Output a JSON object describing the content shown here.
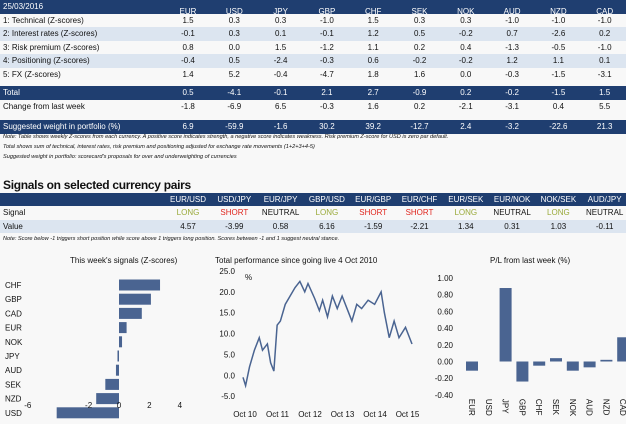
{
  "scorecard": {
    "date": "25/03/2016",
    "currencies": [
      "EUR",
      "USD",
      "JPY",
      "GBP",
      "CHF",
      "SEK",
      "NOK",
      "AUD",
      "NZD",
      "CAD"
    ],
    "rows": [
      {
        "label": "1: Technical (Z-scores)",
        "values": [
          "1.5",
          "0.3",
          "0.3",
          "-1.0",
          "1.5",
          "0.3",
          "0.3",
          "-1.0",
          "-1.0",
          "-1.0"
        ]
      },
      {
        "label": "2: Interest rates (Z-scores)",
        "values": [
          "-0.1",
          "0.3",
          "0.1",
          "-0.1",
          "1.2",
          "0.5",
          "-0.2",
          "0.7",
          "-2.6",
          "0.2"
        ]
      },
      {
        "label": "3: Risk premium (Z-scores)",
        "values": [
          "0.8",
          "0.0",
          "1.5",
          "-1.2",
          "1.1",
          "0.2",
          "0.4",
          "-1.3",
          "-0.5",
          "-1.0"
        ]
      },
      {
        "label": "4: Positioning (Z-scores)",
        "values": [
          "-0.4",
          "0.5",
          "-2.4",
          "-0.3",
          "0.6",
          "-0.2",
          "-0.2",
          "1.2",
          "1.1",
          "0.1"
        ]
      },
      {
        "label": "5: FX (Z-scores)",
        "values": [
          "1.4",
          "5.2",
          "-0.4",
          "-4.7",
          "1.8",
          "1.6",
          "0.0",
          "-0.3",
          "-1.5",
          "-3.1"
        ]
      }
    ],
    "total": {
      "label": "Total",
      "values": [
        "0.5",
        "-4.1",
        "-0.1",
        "2.1",
        "2.7",
        "-0.9",
        "0.2",
        "-0.2",
        "-1.5",
        "1.5"
      ]
    },
    "change": {
      "label": "Change from last week",
      "values": [
        "-1.8",
        "-6.9",
        "6.5",
        "-0.3",
        "1.6",
        "0.2",
        "-2.1",
        "-3.1",
        "0.4",
        "5.5"
      ]
    },
    "weight": {
      "label": "Suggested weight in portfolio (%)",
      "values": [
        "6.9",
        "-59.9",
        "-1.6",
        "30.2",
        "39.2",
        "-12.7",
        "2.4",
        "-3.2",
        "-22.6",
        "21.3"
      ]
    },
    "notes": [
      "Note: Table shows weekly Z-scores from each currency. A positive score indicates strength, a negative score indicates weakness. Risk premium Z-score for USD is zero par default.",
      "Total shows sum of technical, interest rates, risk premium and positioning adjusted for exchange rate movements (1+2+3+4-5)",
      "Suggested weight in portfolio: scorecard's proposals for over and underweighting of currencies"
    ]
  },
  "signals": {
    "title": "Signals on selected currency pairs",
    "pairs": [
      "EUR/USD",
      "USD/JPY",
      "EUR/JPY",
      "GBP/USD",
      "EUR/GBP",
      "EUR/CHF",
      "EUR/SEK",
      "EUR/NOK",
      "NOK/SEK",
      "AUD/JPY"
    ],
    "signal_label": "Signal",
    "signals": [
      "LONG",
      "SHORT",
      "NEUTRAL",
      "LONG",
      "SHORT",
      "SHORT",
      "LONG",
      "NEUTRAL",
      "LONG",
      "NEUTRAL"
    ],
    "value_label": "Value",
    "values": [
      "4.57",
      "-3.99",
      "0.58",
      "6.16",
      "-1.59",
      "-2.21",
      "1.34",
      "0.31",
      "1.03",
      "-0.11"
    ],
    "note": "Note: Score below -1 triggers short position while score above 1 triggers long position. Scores between -1 and 1 suggest neutral stance.",
    "colors": {
      "LONG": "#9aaa3a",
      "SHORT": "#e0261e",
      "NEUTRAL": "#111111"
    }
  },
  "chart_data": [
    {
      "type": "bar",
      "orientation": "horizontal",
      "title": "This week's signals (Z-scores)",
      "categories": [
        "CHF",
        "GBP",
        "CAD",
        "EUR",
        "NOK",
        "JPY",
        "AUD",
        "SEK",
        "NZD",
        "USD"
      ],
      "values": [
        2.7,
        2.1,
        1.5,
        0.5,
        0.2,
        -0.1,
        -0.2,
        -0.9,
        -1.5,
        -4.1
      ],
      "xlim": [
        -6,
        4
      ],
      "xticks": [
        "-6",
        "-2",
        "0",
        "2",
        "4"
      ],
      "xtick_values": [
        -6,
        -2,
        0,
        2,
        4
      ],
      "color": "#4a6491"
    },
    {
      "type": "line",
      "title": "Total performance since going live 4 Oct 2010",
      "ylabel": "%",
      "ylim": [
        -5,
        25
      ],
      "yticks": [
        "25.0",
        "20.0",
        "15.0",
        "10.0",
        "5.0",
        "0.0",
        "-5.0"
      ],
      "xticks": [
        "Oct 10",
        "Oct 11",
        "Oct 12",
        "Oct 13",
        "Oct 14",
        "Oct 15"
      ],
      "x_years_since_start": [
        0,
        0.08,
        0.2,
        0.35,
        0.5,
        0.6,
        0.75,
        0.85,
        0.95,
        1.05,
        1.15,
        1.3,
        1.45,
        1.6,
        1.75,
        1.9,
        2.0,
        2.2,
        2.35,
        2.45,
        2.6,
        2.75,
        2.9,
        3.05,
        3.25,
        3.35,
        3.5,
        3.65,
        3.85,
        4.05,
        4.25,
        4.35,
        4.5,
        4.65,
        4.8,
        5.0,
        5.2
      ],
      "y": [
        -0.5,
        -2.5,
        2,
        6,
        9,
        6,
        7.5,
        3,
        1,
        12,
        13,
        17,
        19,
        21,
        22.5,
        20,
        22,
        18.5,
        15.5,
        18,
        14,
        19,
        16,
        19,
        15,
        13,
        17,
        16,
        18,
        17,
        20,
        15,
        9,
        13,
        9,
        11.5,
        7.5
      ],
      "color": "#4a6491"
    },
    {
      "type": "bar",
      "title": "P/L from last week (%)",
      "categories": [
        "EUR",
        "USD",
        "JPY",
        "GBP",
        "CHF",
        "SEK",
        "NOK",
        "AUD",
        "NZD",
        "CAD"
      ],
      "values": [
        -0.11,
        0,
        0.88,
        -0.24,
        -0.05,
        0.04,
        -0.11,
        -0.07,
        0.02,
        0.29
      ],
      "ylim": [
        -0.4,
        1.0
      ],
      "yticks": [
        "1.00",
        "0.80",
        "0.60",
        "0.40",
        "0.20",
        "0.00",
        "-0.20",
        "-0.40"
      ],
      "color": "#4a6491"
    }
  ]
}
